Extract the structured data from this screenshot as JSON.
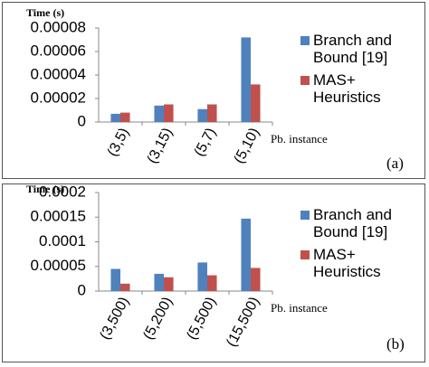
{
  "chart_data": [
    {
      "type": "bar",
      "y_label": "Time (s)",
      "x_label": "Pb. instance",
      "panel_label": "(a)",
      "categories": [
        "(3,5)",
        "(3,15)",
        "(5,7)",
        "(5,10)"
      ],
      "series": [
        {
          "name": "Branch and Bound [19]",
          "color": "#4f81bd",
          "values": [
            7e-06,
            1.4e-05,
            1.1e-05,
            7.2e-05
          ]
        },
        {
          "name": "MAS+ Heuristics",
          "color": "#c0504d",
          "values": [
            8e-06,
            1.5e-05,
            1.5e-05,
            3.2e-05
          ]
        }
      ],
      "ylim": [
        0,
        8e-05
      ],
      "yticks": [
        0,
        2e-05,
        4e-05,
        6e-05,
        8e-05
      ],
      "grid": false
    },
    {
      "type": "bar",
      "y_label": "Time (s)",
      "x_label": "Pb. instance",
      "panel_label": "(b)",
      "categories": [
        "(3,500)",
        "(5,200)",
        "(5,500)",
        "(15,500)"
      ],
      "series": [
        {
          "name": "Branch and Bound [19]",
          "color": "#4f81bd",
          "values": [
            4.5e-05,
            3.5e-05,
            5.8e-05,
            0.000147
          ]
        },
        {
          "name": "MAS+ Heuristics",
          "color": "#c0504d",
          "values": [
            1.5e-05,
            2.8e-05,
            3.2e-05,
            4.7e-05
          ]
        }
      ],
      "ylim": [
        0,
        0.0002
      ],
      "yticks": [
        0,
        5e-05,
        0.0001,
        0.00015,
        0.0002
      ],
      "grid": false
    }
  ]
}
